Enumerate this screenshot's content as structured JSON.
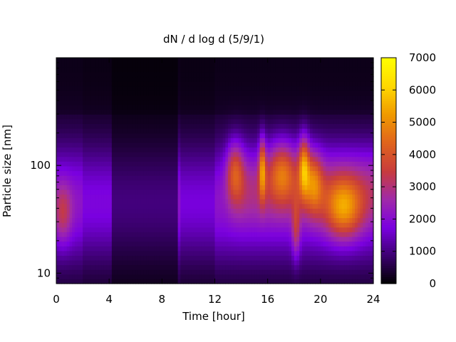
{
  "chart_data": {
    "type": "heatmap",
    "title": "dN / d log d (5/9/1)",
    "xlabel": "Time [hour]",
    "ylabel": "Particle size [nm]",
    "xlim": [
      0,
      24
    ],
    "x_ticks": [
      0,
      4,
      8,
      12,
      16,
      20,
      24
    ],
    "x_tick_labels": [
      "0",
      "4",
      "8",
      "12",
      "16",
      "20",
      "24"
    ],
    "y_scale": "log",
    "ylim": [
      8,
      1000
    ],
    "y_ticks": [
      10,
      100
    ],
    "y_tick_labels": [
      "10",
      "100"
    ],
    "colorbar": {
      "min": 0,
      "max": 7000,
      "ticks": [
        0,
        1000,
        2000,
        3000,
        4000,
        5000,
        6000,
        7000
      ],
      "tick_labels": [
        "0",
        "1000",
        "2000",
        "3000",
        "4000",
        "5000",
        "6000",
        "7000"
      ],
      "palette": [
        "#000000",
        "#3c0070",
        "#7a00e0",
        "#a02aa8",
        "#c83c3c",
        "#e0641c",
        "#f09a00",
        "#ffd800",
        "#ffff00"
      ]
    },
    "features": [
      {
        "t0": 0.0,
        "t1": 1.0,
        "d": 36,
        "peak": 3100,
        "note": "early morning mode"
      },
      {
        "t0": 13.0,
        "t1": 14.0,
        "d": 90,
        "peak": 3900
      },
      {
        "t0": 15.5,
        "t1": 15.7,
        "d": 95,
        "peak": 4700
      },
      {
        "t0": 16.2,
        "t1": 18.0,
        "d": 90,
        "peak": 4000
      },
      {
        "t0": 18.0,
        "t1": 18.3,
        "d": 25,
        "peak": 3300
      },
      {
        "t0": 18.5,
        "t1": 19.0,
        "d": 100,
        "peak": 4800
      },
      {
        "t0": 19.0,
        "t1": 20.0,
        "d": 70,
        "peak": 4000
      },
      {
        "t0": 20.5,
        "t1": 23.0,
        "d": 40,
        "peak": 4600
      }
    ],
    "grid": false,
    "legend": "colorbar-right"
  }
}
